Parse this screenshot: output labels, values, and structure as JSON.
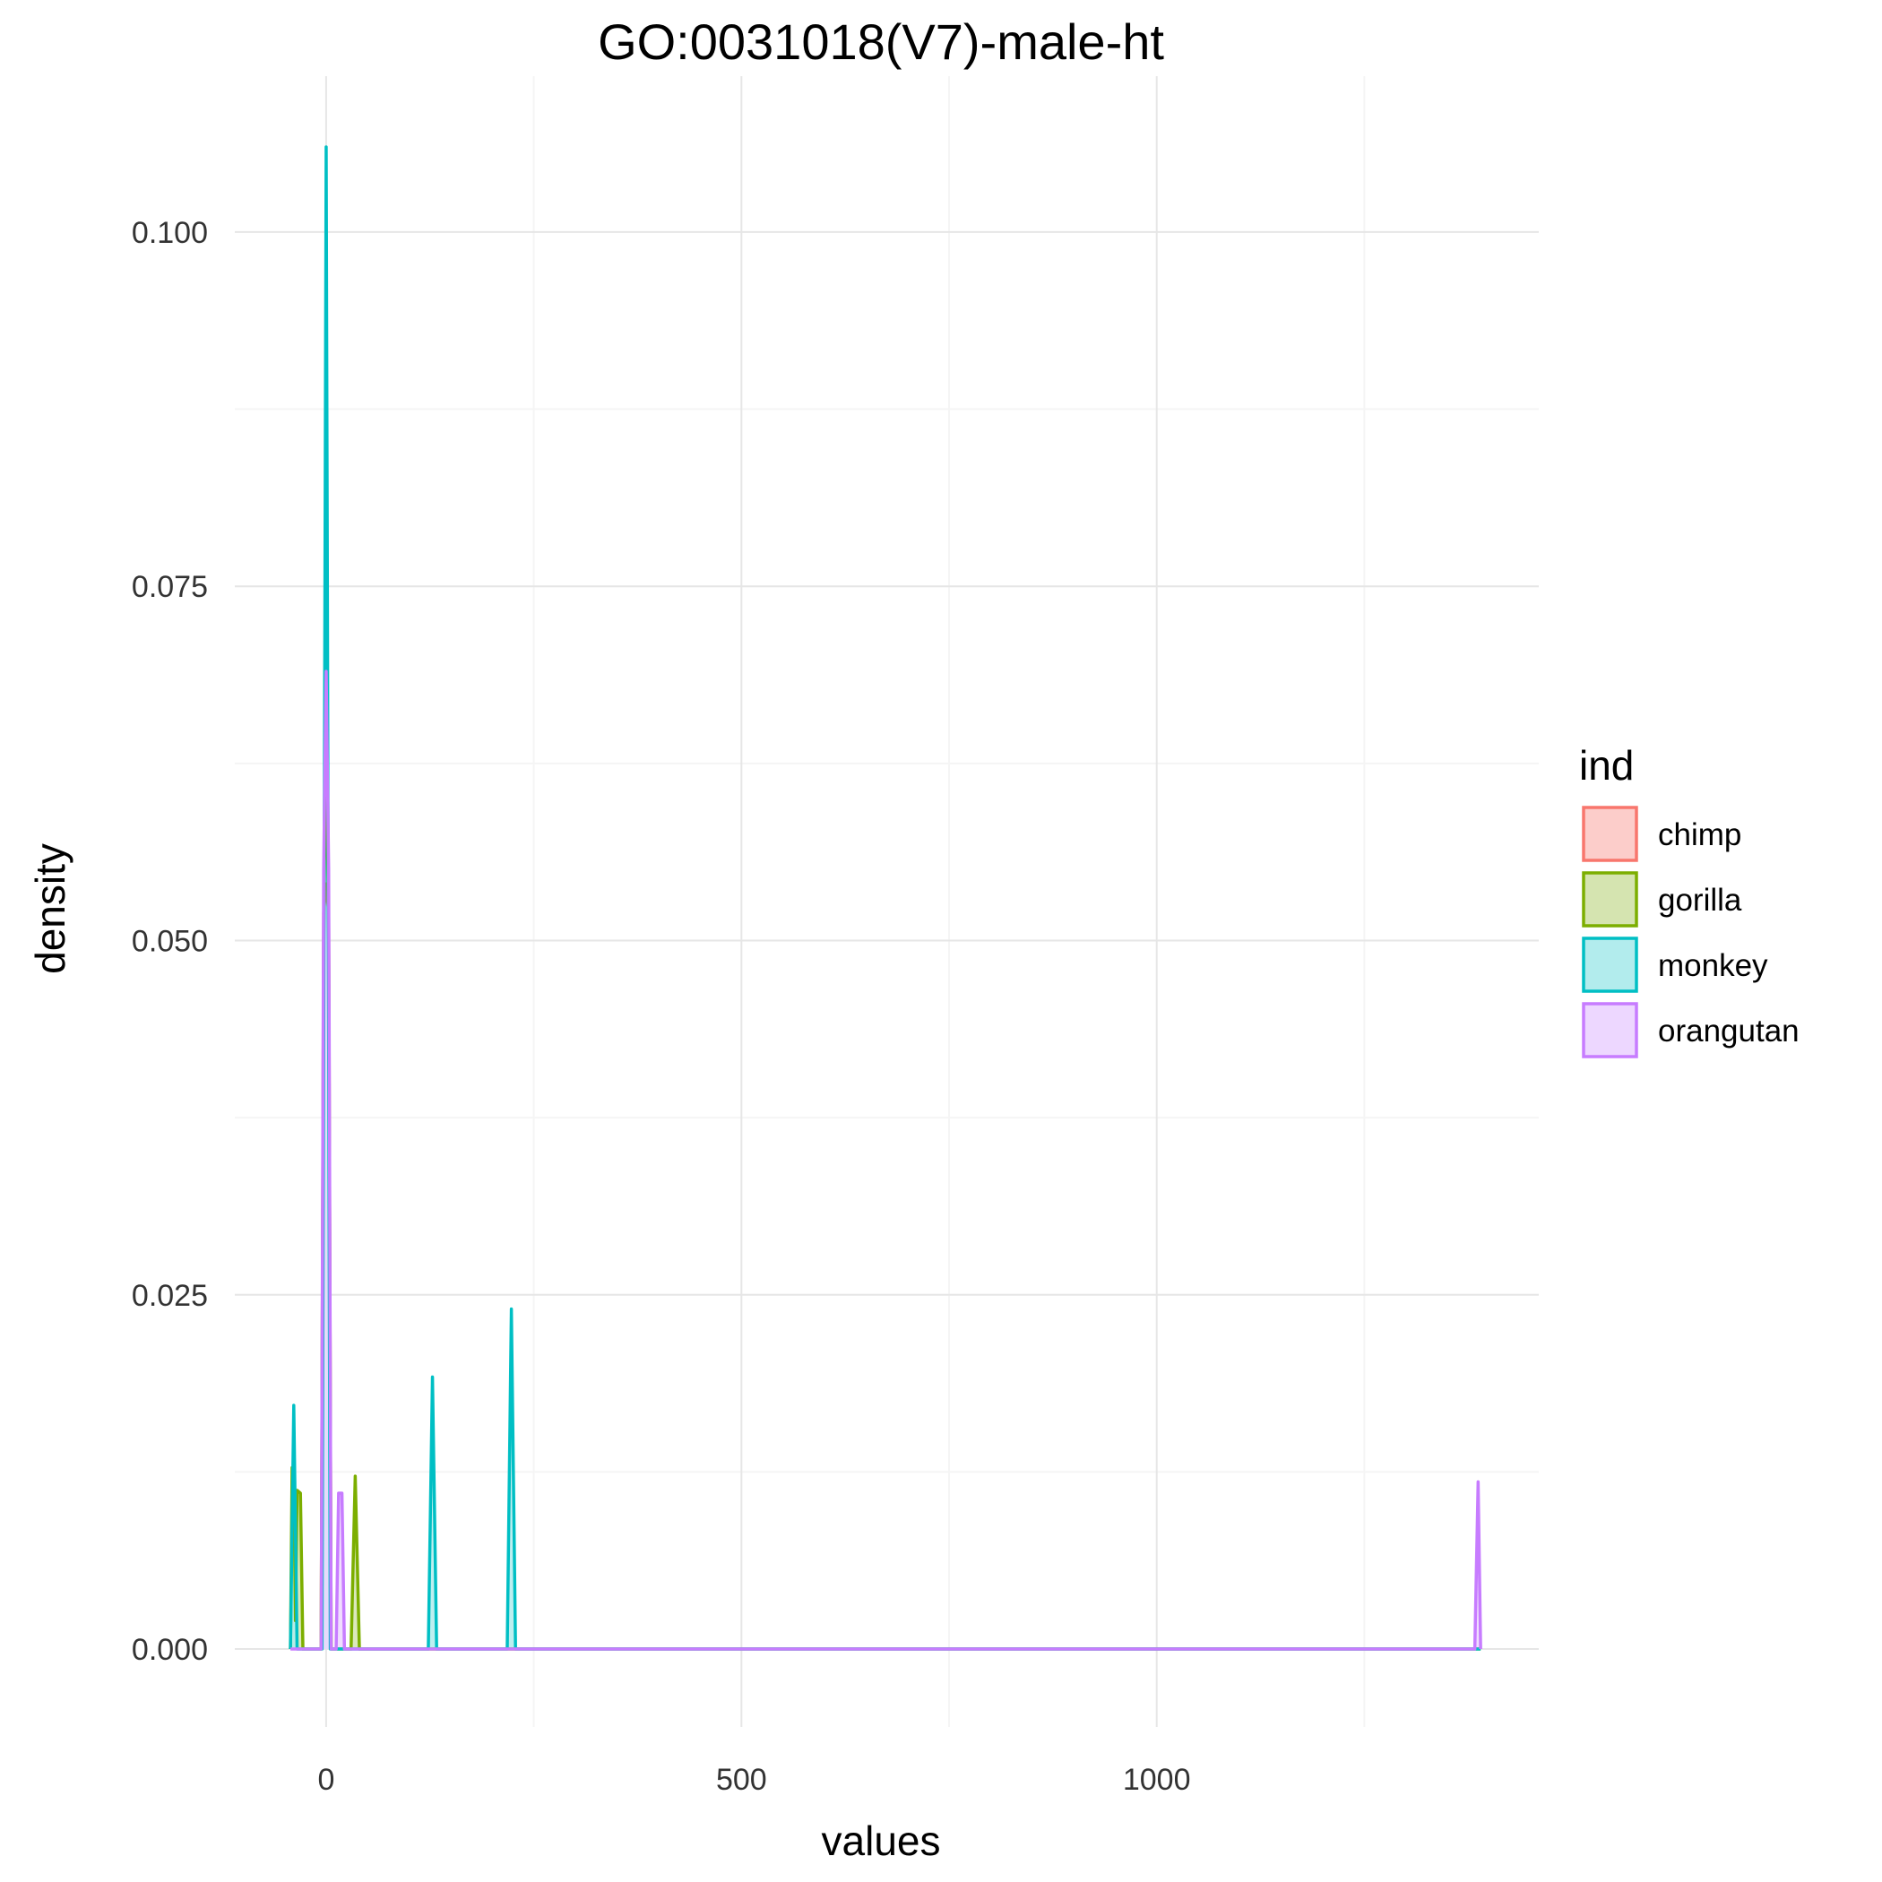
{
  "chart_data": {
    "type": "area",
    "title": "GO:0031018(V7)-male-ht",
    "xlabel": "values",
    "ylabel": "density",
    "xlim": [
      -110,
      1460
    ],
    "ylim": [
      -0.0055,
      0.111
    ],
    "x_ticks": [
      0,
      500,
      1000
    ],
    "x_tick_labels": [
      "0",
      "500",
      "1000"
    ],
    "y_ticks": [
      0.0,
      0.025,
      0.05,
      0.075,
      0.1
    ],
    "y_tick_labels": [
      "0.000",
      "0.025",
      "0.050",
      "0.075",
      "0.100"
    ],
    "grid": true,
    "legend": {
      "title": "ind",
      "position": "right"
    },
    "series": [
      {
        "name": "chimp",
        "color": "#F8766D",
        "fill": "#FCCDCA",
        "points": [
          [
            -6,
            0
          ],
          [
            -3,
            0.052
          ],
          [
            0,
            0.054
          ],
          [
            3,
            0.052
          ],
          [
            6,
            0
          ]
        ]
      },
      {
        "name": "gorilla",
        "color": "#7CAE00",
        "fill": "#D5E4B0",
        "points": [
          [
            -43,
            0
          ],
          [
            -41,
            0.0128
          ],
          [
            -39,
            0.0128
          ],
          [
            -37,
            0.002
          ],
          [
            -35,
            0.0112
          ],
          [
            -31,
            0.011
          ],
          [
            -28,
            0
          ],
          [
            -6,
            0
          ],
          [
            -3,
            0.05
          ],
          [
            0,
            0.066
          ],
          [
            3,
            0.05
          ],
          [
            6,
            0
          ],
          [
            30,
            0
          ],
          [
            35,
            0.0122
          ],
          [
            40,
            0
          ],
          [
            1390,
            0
          ]
        ]
      },
      {
        "name": "monkey",
        "color": "#00BFC4",
        "fill": "#B2ECED",
        "points": [
          [
            -43,
            0
          ],
          [
            -39,
            0.0172
          ],
          [
            -35,
            0
          ],
          [
            -5,
            0
          ],
          [
            0,
            0.106
          ],
          [
            5,
            0
          ],
          [
            123,
            0
          ],
          [
            128,
            0.0192
          ],
          [
            133,
            0
          ],
          [
            218,
            0
          ],
          [
            223,
            0.024
          ],
          [
            228,
            0
          ],
          [
            1390,
            0
          ]
        ]
      },
      {
        "name": "orangutan",
        "color": "#C77CFF",
        "fill": "#EDD7FF",
        "points": [
          [
            -43,
            0
          ],
          [
            -6,
            0
          ],
          [
            -3,
            0.055
          ],
          [
            0,
            0.069
          ],
          [
            3,
            0.055
          ],
          [
            6,
            0
          ],
          [
            12,
            0
          ],
          [
            15,
            0.011
          ],
          [
            19,
            0.011
          ],
          [
            22,
            0
          ],
          [
            1383,
            0
          ],
          [
            1387,
            0.0118
          ],
          [
            1390,
            0
          ]
        ]
      }
    ]
  }
}
